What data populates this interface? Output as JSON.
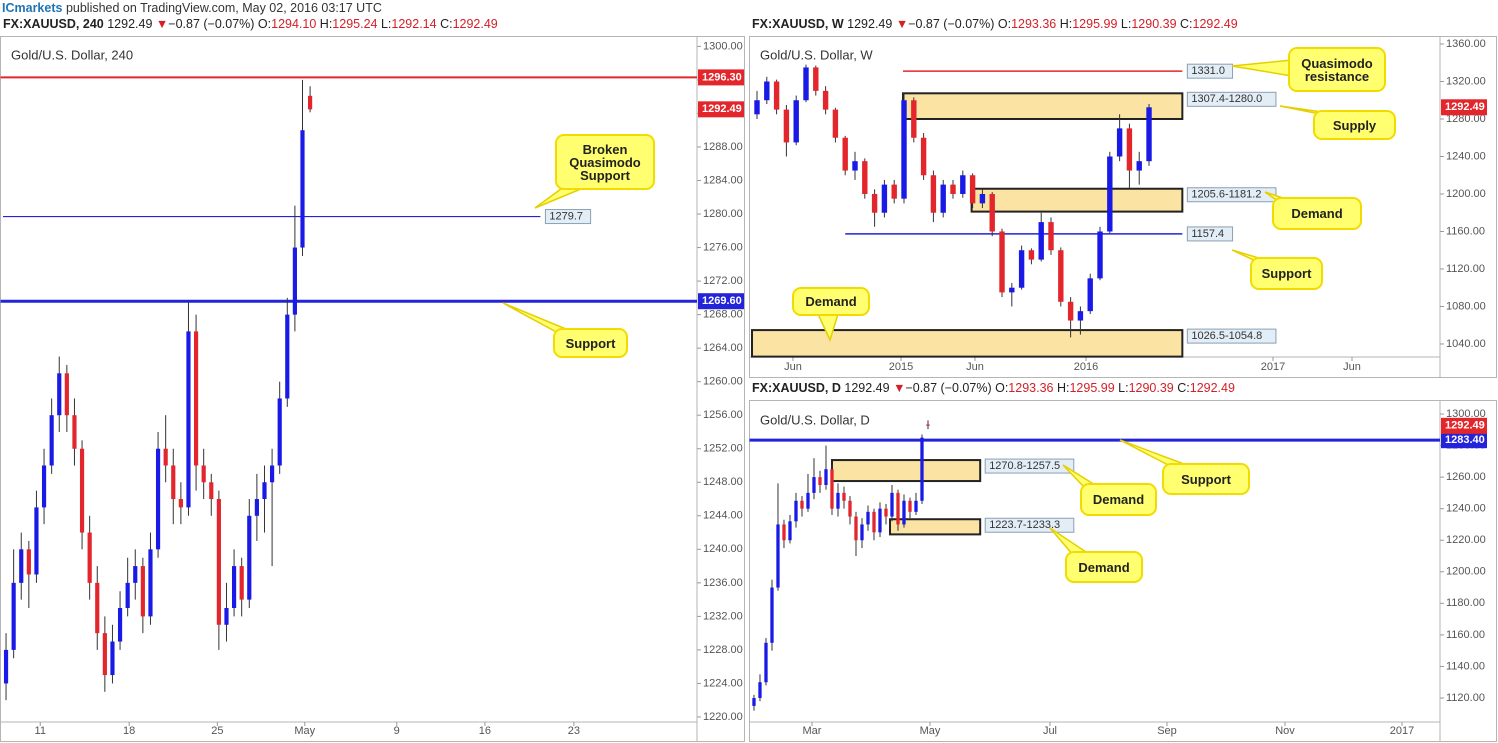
{
  "header": {
    "brand": "ICmarkets",
    "text": "published on TradingView.com, May 02, 2016 03:17 UTC"
  },
  "chart_data": [
    {
      "type": "candlestick",
      "title": "Gold/U.S. Dollar, 240",
      "quote": {
        "symbol": "FX:XAUUSD, 240",
        "last": 1292.49,
        "arrow": "▼",
        "change": "−0.87 (−0.07%)",
        "fields": [
          {
            "key": "O:",
            "value": "1294.10"
          },
          {
            "key": "H:",
            "value": "1295.24"
          },
          {
            "key": "L:",
            "value": "1292.14"
          },
          {
            "key": "C:",
            "value": "1292.49"
          }
        ]
      },
      "x": [
        0,
        1,
        2,
        3,
        4,
        5,
        6,
        7,
        8,
        9,
        10,
        11,
        12,
        13,
        14,
        15,
        16,
        17,
        18,
        19,
        20,
        21,
        22,
        23,
        24,
        25,
        26,
        27,
        28,
        29,
        30,
        31,
        32,
        33,
        34,
        35,
        36,
        37,
        38,
        39,
        40
      ],
      "open": [
        1224,
        1228,
        1236,
        1240,
        1237,
        1245,
        1250,
        1256,
        1261,
        1256,
        1252,
        1242,
        1236,
        1230,
        1225,
        1229,
        1233,
        1236,
        1238,
        1232,
        1240,
        1252,
        1250,
        1246,
        1245,
        1266,
        1250,
        1248,
        1246,
        1231,
        1233,
        1238,
        1234,
        1244,
        1246,
        1248,
        1250,
        1258,
        1268,
        1276,
        1294.1
      ],
      "high": [
        1230,
        1240,
        1242,
        1241,
        1247,
        1252,
        1258,
        1263,
        1262,
        1258,
        1253,
        1244,
        1238,
        1232,
        1231,
        1235,
        1239,
        1240,
        1239,
        1242,
        1254,
        1256,
        1252,
        1248,
        1269.5,
        1268,
        1252,
        1249,
        1247,
        1236,
        1240,
        1239,
        1246,
        1249,
        1250,
        1252,
        1260,
        1270,
        1281,
        1296,
        1295.24
      ],
      "low": [
        1222,
        1227,
        1234,
        1233,
        1236,
        1243,
        1249,
        1254,
        1254,
        1250,
        1240,
        1234,
        1228,
        1223,
        1224,
        1228,
        1232,
        1234,
        1230,
        1231,
        1239,
        1248,
        1243,
        1243,
        1244,
        1247,
        1246,
        1244,
        1228,
        1229,
        1232,
        1232,
        1233,
        1241,
        1242,
        1238,
        1249,
        1257,
        1266,
        1275,
        1292.14
      ],
      "close": [
        1228,
        1236,
        1240,
        1237,
        1245,
        1250,
        1256,
        1261,
        1256,
        1252,
        1242,
        1236,
        1230,
        1225,
        1229,
        1233,
        1236,
        1238,
        1232,
        1240,
        1252,
        1250,
        1246,
        1245,
        1266,
        1250,
        1248,
        1246,
        1231,
        1233,
        1238,
        1234,
        1244,
        1246,
        1248,
        1250,
        1258,
        1268,
        1276,
        1290,
        1292.49
      ],
      "up_color": "#1a1ae6",
      "down_color": "#e3262b",
      "wick_color": "#333333",
      "last_color": "#e3262b",
      "xlim": [
        -0.4,
        90.9
      ],
      "xticks": [
        {
          "value": 4.5,
          "label": "11"
        },
        {
          "value": 16.2,
          "label": "18"
        },
        {
          "value": 27.8,
          "label": "25"
        },
        {
          "value": 39.3,
          "label": "May"
        },
        {
          "value": 51.4,
          "label": "9"
        },
        {
          "value": 63.0,
          "label": "16"
        },
        {
          "value": 74.7,
          "label": "23"
        }
      ],
      "ylim": [
        1219.4,
        1301
      ],
      "yticks": [
        {
          "value": 1220,
          "label": "1220.00"
        },
        {
          "value": 1224,
          "label": "1224.00"
        },
        {
          "value": 1228,
          "label": "1228.00"
        },
        {
          "value": 1232,
          "label": "1232.00"
        },
        {
          "value": 1236,
          "label": "1236.00"
        },
        {
          "value": 1240,
          "label": "1240.00"
        },
        {
          "value": 1244,
          "label": "1244.00"
        },
        {
          "value": 1248,
          "label": "1248.00"
        },
        {
          "value": 1252,
          "label": "1252.00"
        },
        {
          "value": 1256,
          "label": "1256.00"
        },
        {
          "value": 1260,
          "label": "1260.00"
        },
        {
          "value": 1264,
          "label": "1264.00"
        },
        {
          "value": 1268,
          "label": "1268.00"
        },
        {
          "value": 1272,
          "label": "1272.00"
        },
        {
          "value": 1276,
          "label": "1276.00"
        },
        {
          "value": 1280,
          "label": "1280.00"
        },
        {
          "value": 1284,
          "label": "1284.00"
        },
        {
          "value": 1288,
          "label": "1288.00"
        },
        {
          "value": 1292,
          "label": "1292.00"
        },
        {
          "value": 1296,
          "label": "1296.00"
        },
        {
          "value": 1300,
          "label": "1300.00"
        }
      ],
      "levels": [
        {
          "value": 1296.3,
          "label": "1296.30",
          "color": "#e3262b",
          "width": 2
        },
        {
          "value": 1279.7,
          "color": "#2323d9",
          "width": 1.2,
          "x_range": [
            -0.4,
            70.3
          ]
        },
        {
          "value": 1269.6,
          "label": "1269.60",
          "color": "#2323d9",
          "width": 3
        }
      ],
      "zones": [],
      "annotations": [
        "Broken Quasimodo Support",
        "Support"
      ]
    },
    {
      "type": "candlestick",
      "title": "Gold/U.S. Dollar, W",
      "quote": {
        "symbol": "FX:XAUUSD, W",
        "last": 1292.49,
        "arrow": "▼",
        "change": "−0.87 (−0.07%)",
        "fields": [
          {
            "key": "O:",
            "value": "1293.36"
          },
          {
            "key": "H:",
            "value": "1295.99"
          },
          {
            "key": "L:",
            "value": "1290.39"
          },
          {
            "key": "C:",
            "value": "1292.49"
          }
        ]
      },
      "x": [
        0,
        1,
        2,
        3,
        4,
        5,
        6,
        7,
        8,
        9,
        10,
        11,
        12,
        13,
        14,
        15,
        16,
        17,
        18,
        19,
        20,
        21,
        22,
        23,
        24,
        25,
        26,
        27,
        28,
        29,
        30,
        31,
        32,
        33,
        34,
        35,
        36,
        37,
        38,
        39,
        40
      ],
      "open": [
        1285,
        1300,
        1320,
        1290,
        1255,
        1300,
        1335,
        1310,
        1290,
        1260,
        1225,
        1235,
        1200,
        1180,
        1210,
        1195,
        1300,
        1260,
        1220,
        1180,
        1210,
        1200,
        1220,
        1190,
        1200,
        1160,
        1095,
        1100,
        1140,
        1130,
        1170,
        1140,
        1085,
        1065,
        1075,
        1110,
        1160,
        1240,
        1270,
        1225,
        1235
      ],
      "high": [
        1310,
        1325,
        1322,
        1295,
        1305,
        1338,
        1337,
        1315,
        1292,
        1262,
        1245,
        1238,
        1205,
        1215,
        1215,
        1308,
        1303,
        1265,
        1225,
        1215,
        1215,
        1225,
        1222,
        1205,
        1202,
        1163,
        1105,
        1145,
        1142,
        1180,
        1175,
        1143,
        1090,
        1080,
        1115,
        1165,
        1245,
        1285,
        1275,
        1245,
        1296
      ],
      "low": [
        1280,
        1296,
        1285,
        1240,
        1252,
        1298,
        1305,
        1285,
        1255,
        1220,
        1215,
        1195,
        1165,
        1175,
        1190,
        1190,
        1255,
        1215,
        1170,
        1175,
        1195,
        1196,
        1185,
        1185,
        1155,
        1090,
        1080,
        1098,
        1125,
        1128,
        1135,
        1080,
        1047,
        1050,
        1072,
        1108,
        1158,
        1235,
        1205,
        1210,
        1230
      ],
      "close": [
        1300,
        1320,
        1290,
        1255,
        1300,
        1335,
        1310,
        1290,
        1260,
        1225,
        1235,
        1200,
        1180,
        1210,
        1195,
        1300,
        1260,
        1220,
        1180,
        1210,
        1200,
        1220,
        1190,
        1200,
        1160,
        1095,
        1100,
        1140,
        1130,
        1170,
        1140,
        1085,
        1065,
        1075,
        1110,
        1160,
        1240,
        1270,
        1225,
        1235,
        1292.49
      ],
      "up_color": "#1a1ae6",
      "down_color": "#e3262b",
      "wick_color": "#333333",
      "last_color": "#e3262b",
      "xlim": [
        -0.51,
        69.69
      ],
      "xticks": [
        {
          "value": 3.67,
          "label": "Jun"
        },
        {
          "value": 14.69,
          "label": "2015"
        },
        {
          "value": 22.24,
          "label": "Jun"
        },
        {
          "value": 33.57,
          "label": "2016"
        },
        {
          "value": 52.65,
          "label": "2017"
        },
        {
          "value": 60.71,
          "label": "Jun"
        }
      ],
      "ylim": [
        1026.1,
        1366.4
      ],
      "yticks": [
        {
          "value": 1040,
          "label": "1040.00"
        },
        {
          "value": 1080,
          "label": "1080.00"
        },
        {
          "value": 1120,
          "label": "1120.00"
        },
        {
          "value": 1160,
          "label": "1160.00"
        },
        {
          "value": 1200,
          "label": "1200.00"
        },
        {
          "value": 1240,
          "label": "1240.00"
        },
        {
          "value": 1280,
          "label": "1280.00"
        },
        {
          "value": 1320,
          "label": "1320.00"
        },
        {
          "value": 1360,
          "label": "1360.00"
        }
      ],
      "levels": [
        {
          "value": 1331,
          "label": "1331.0",
          "color": "#e3262b",
          "width": 1.5,
          "x_range": [
            14.9,
            43.4
          ]
        },
        {
          "value": 1157.4,
          "color": "#2323d9",
          "width": 1.5,
          "x_range": [
            9.0,
            43.4
          ]
        }
      ],
      "zones": [
        {
          "high": 1307.4,
          "low": 1280.0,
          "label": "1307.4-1280.0",
          "x_range": [
            14.9,
            43.4
          ]
        },
        {
          "high": 1205.6,
          "low": 1181.2,
          "label": "1205.6-1181.2",
          "x_range": [
            21.9,
            43.4
          ]
        },
        {
          "low": 1026.5,
          "high": 1054.8,
          "label": "1026.5-1054.8",
          "x_range": [
            -0.51,
            43.4
          ]
        }
      ],
      "zone_color": "#fbe3a3",
      "annotations": [
        "Quasimodo resistance",
        "Supply",
        "Demand",
        "Support",
        "Demand"
      ]
    },
    {
      "type": "candlestick",
      "title": "Gold/U.S. Dollar, D",
      "quote": {
        "symbol": "FX:XAUUSD, D",
        "last": 1292.49,
        "arrow": "▼",
        "change": "−0.87 (−0.07%)",
        "fields": [
          {
            "key": "O:",
            "value": "1293.36"
          },
          {
            "key": "H:",
            "value": "1295.99"
          },
          {
            "key": "L:",
            "value": "1290.39"
          },
          {
            "key": "C:",
            "value": "1292.49"
          }
        ]
      },
      "x": [
        0,
        1,
        2,
        3,
        4,
        5,
        6,
        7,
        8,
        9,
        10,
        11,
        12,
        13,
        14,
        15,
        16,
        17,
        18,
        19,
        20,
        21,
        22,
        23,
        24,
        25,
        26,
        27,
        28,
        29
      ],
      "open": [
        1115,
        1120,
        1130,
        1155,
        1190,
        1230,
        1220,
        1232,
        1245,
        1240,
        1250,
        1260,
        1255,
        1265,
        1240,
        1250,
        1245,
        1235,
        1220,
        1230,
        1238,
        1225,
        1240,
        1235,
        1250,
        1230,
        1245,
        1238,
        1245,
        1293.36
      ],
      "high": [
        1122,
        1135,
        1158,
        1195,
        1256,
        1233,
        1236,
        1250,
        1248,
        1262,
        1272,
        1264,
        1280,
        1268,
        1256,
        1254,
        1248,
        1238,
        1234,
        1242,
        1240,
        1244,
        1243,
        1255,
        1252,
        1249,
        1247,
        1250,
        1287,
        1295.99
      ],
      "low": [
        1112,
        1118,
        1128,
        1150,
        1188,
        1215,
        1218,
        1228,
        1235,
        1238,
        1246,
        1250,
        1252,
        1236,
        1235,
        1240,
        1230,
        1210,
        1215,
        1226,
        1220,
        1222,
        1230,
        1232,
        1226,
        1228,
        1234,
        1236,
        1243,
        1290.39
      ],
      "close": [
        1120,
        1130,
        1155,
        1190,
        1230,
        1220,
        1232,
        1245,
        1240,
        1250,
        1260,
        1255,
        1265,
        1240,
        1250,
        1245,
        1235,
        1220,
        1230,
        1238,
        1225,
        1240,
        1235,
        1250,
        1230,
        1245,
        1238,
        1245,
        1285,
        1292.49
      ],
      "up_color": "#1a1ae6",
      "down_color": "#e3262b",
      "wick_color": "#333333",
      "last_color": "#e3262b",
      "xlim": [
        -0.33,
        114.33
      ],
      "xticks": [
        {
          "value": 9.67,
          "label": "Mar"
        },
        {
          "value": 29.33,
          "label": "May"
        },
        {
          "value": 49.33,
          "label": "Jul"
        },
        {
          "value": 68.83,
          "label": "Sep"
        },
        {
          "value": 88.5,
          "label": "Nov"
        },
        {
          "value": 108,
          "label": "2017"
        }
      ],
      "ylim": [
        1104.8,
        1307.6
      ],
      "yticks": [
        {
          "value": 1120,
          "label": "1120.00"
        },
        {
          "value": 1140,
          "label": "1140.00"
        },
        {
          "value": 1160,
          "label": "1160.00"
        },
        {
          "value": 1180,
          "label": "1180.00"
        },
        {
          "value": 1200,
          "label": "1200.00"
        },
        {
          "value": 1220,
          "label": "1220.00"
        },
        {
          "value": 1240,
          "label": "1240.00"
        },
        {
          "value": 1260,
          "label": "1260.00"
        },
        {
          "value": 1280,
          "label": "1280.00"
        },
        {
          "value": 1300,
          "label": "1300.00"
        }
      ],
      "levels": [
        {
          "value": 1283.4,
          "label": "1283.40",
          "color": "#2323d9",
          "width": 3
        }
      ],
      "zones": [
        {
          "high": 1270.8,
          "low": 1257.5,
          "label": "1270.8-1257.5",
          "x_range": [
            13,
            37.7
          ]
        },
        {
          "low": 1223.7,
          "high": 1233.3,
          "label": "1223.7-1233.3",
          "x_range": [
            22.67,
            37.7
          ]
        }
      ],
      "zone_color": "#fbe3a3",
      "annotations": [
        "Support",
        "Demand",
        "Demand"
      ]
    }
  ]
}
